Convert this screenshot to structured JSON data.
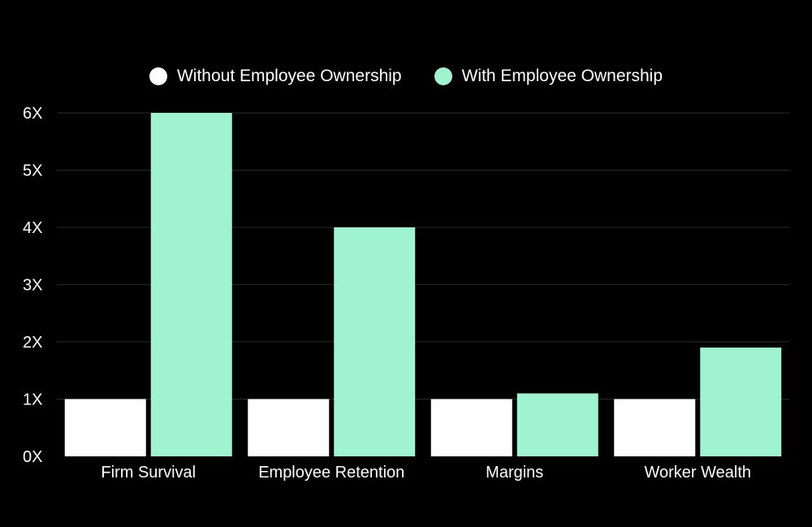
{
  "legend": {
    "items": [
      {
        "label": "Without Employee Ownership",
        "color": "#ffffff"
      },
      {
        "label": "With Employee Ownership",
        "color": "#9ff3cf"
      }
    ]
  },
  "chart_data": {
    "type": "bar",
    "categories": [
      "Firm Survival",
      "Employee Retention",
      "Margins",
      "Worker Wealth"
    ],
    "series": [
      {
        "name": "Without Employee Ownership",
        "color": "#ffffff",
        "values": [
          1,
          1,
          1,
          1
        ]
      },
      {
        "name": "With Employee Ownership",
        "color": "#9ff3cf",
        "values": [
          6,
          4,
          1.1,
          1.9
        ]
      }
    ],
    "ylim": [
      0,
      6
    ],
    "yticks": [
      0,
      1,
      2,
      3,
      4,
      5,
      6
    ],
    "ytick_labels": [
      "0X",
      "1X",
      "2X",
      "3X",
      "4X",
      "5X",
      "6X"
    ],
    "grid": true,
    "legend_position": "top-center",
    "title": "",
    "xlabel": "",
    "ylabel": ""
  }
}
